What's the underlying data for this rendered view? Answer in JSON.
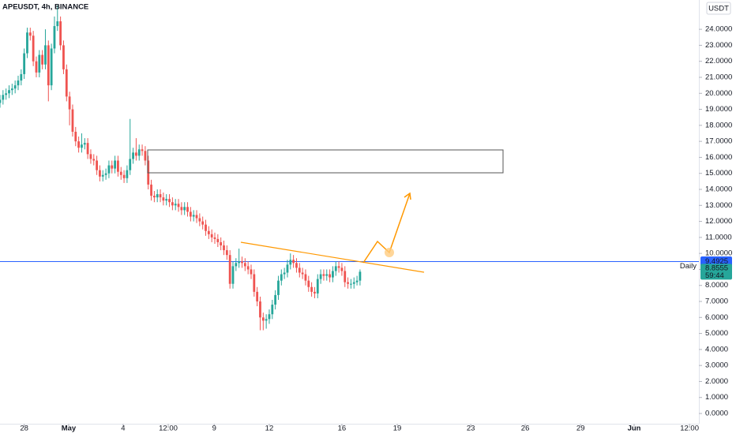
{
  "chart_data": {
    "type": "candlestick",
    "title": "APEUSDT, 4h, BINANCE",
    "currency": "USDT",
    "open": [
      19.4,
      19.6,
      19.9,
      20.0,
      20.2,
      20.3,
      20.5,
      20.8,
      21.2,
      22.5,
      23.8,
      23.6,
      22.0,
      21.3,
      22.4,
      21.8,
      23.0,
      20.5,
      22.8,
      24.2,
      24.5,
      23.0,
      21.5,
      19.8,
      19.0,
      17.6,
      17.0,
      16.6,
      16.8,
      16.9,
      16.2,
      15.9,
      15.8,
      15.2,
      14.8,
      14.9,
      15.0,
      15.5,
      15.3,
      15.8,
      15.1,
      14.9,
      14.7,
      15.2,
      15.9,
      16.3,
      16.1,
      16.5,
      16.4,
      15.8,
      14.3,
      13.6,
      13.5,
      13.7,
      13.5,
      13.3,
      13.4,
      13.2,
      13.0,
      13.1,
      12.9,
      12.7,
      12.9,
      12.6,
      12.3,
      12.4,
      12.2,
      12.0,
      11.8,
      11.4,
      11.2,
      11.0,
      10.9,
      10.7,
      10.5,
      10.2,
      9.9,
      8.1,
      9.2,
      9.4,
      9.5,
      9.4,
      9.2,
      9.0,
      8.7,
      7.6,
      7.0,
      6.0,
      5.8,
      5.9,
      6.2,
      6.8,
      7.4,
      8.3,
      8.7,
      8.8,
      9.3,
      9.6,
      9.4,
      9.1,
      8.8,
      8.7,
      8.3,
      7.9,
      7.6,
      7.5,
      8.4,
      8.7,
      8.6,
      8.7,
      8.5,
      8.9,
      9.2,
      9.1,
      8.9,
      8.2,
      8.1,
      8.1,
      8.2,
      8.3
    ],
    "high": [
      19.9,
      20.2,
      20.3,
      20.5,
      20.6,
      20.8,
      21.1,
      21.5,
      22.8,
      24.1,
      24.1,
      23.9,
      22.3,
      22.7,
      22.7,
      24.0,
      23.3,
      23.1,
      24.8,
      25.5,
      24.8,
      23.3,
      21.8,
      20.1,
      19.3,
      17.9,
      17.3,
      17.5,
      17.2,
      17.2,
      16.5,
      16.2,
      16.1,
      15.5,
      15.2,
      15.3,
      15.8,
      15.8,
      16.1,
      16.1,
      15.4,
      15.2,
      15.5,
      18.4,
      16.6,
      17.2,
      16.8,
      16.8,
      16.7,
      16.1,
      14.6,
      13.9,
      14.0,
      14.0,
      13.8,
      13.7,
      13.7,
      13.5,
      13.4,
      13.4,
      13.2,
      13.2,
      13.2,
      12.9,
      12.7,
      12.7,
      12.5,
      12.3,
      12.1,
      11.7,
      11.5,
      11.3,
      11.2,
      11.0,
      10.8,
      10.5,
      10.2,
      9.5,
      9.7,
      10.3,
      9.8,
      9.7,
      9.5,
      9.3,
      9.0,
      7.9,
      7.3,
      6.3,
      6.2,
      6.5,
      7.1,
      7.7,
      8.6,
      9.0,
      9.1,
      9.6,
      10.0,
      9.9,
      9.7,
      9.4,
      9.1,
      9.0,
      8.6,
      8.2,
      7.9,
      8.7,
      9.0,
      9.0,
      9.0,
      9.0,
      9.2,
      9.5,
      9.5,
      9.4,
      9.2,
      8.5,
      8.4,
      8.5,
      8.6,
      9.0
    ],
    "low": [
      19.1,
      19.3,
      19.6,
      19.7,
      19.9,
      20.0,
      20.2,
      20.5,
      20.9,
      22.2,
      23.3,
      21.7,
      21.0,
      21.0,
      21.5,
      21.5,
      19.5,
      20.2,
      22.5,
      23.9,
      22.7,
      21.2,
      19.5,
      18.0,
      17.3,
      16.7,
      16.3,
      16.3,
      16.5,
      15.9,
      15.6,
      15.5,
      14.9,
      14.5,
      14.5,
      14.6,
      14.7,
      15.0,
      15.0,
      14.8,
      14.6,
      14.4,
      14.4,
      14.9,
      15.6,
      15.8,
      15.8,
      16.1,
      15.5,
      14.0,
      13.3,
      13.2,
      13.2,
      13.2,
      13.0,
      13.0,
      12.9,
      12.7,
      12.7,
      12.6,
      12.4,
      12.4,
      12.3,
      12.0,
      12.0,
      11.9,
      11.7,
      11.5,
      11.1,
      10.9,
      10.7,
      10.6,
      10.4,
      10.2,
      9.9,
      9.6,
      7.8,
      7.8,
      8.9,
      9.1,
      9.1,
      8.9,
      8.7,
      8.4,
      7.3,
      6.7,
      5.2,
      5.2,
      5.3,
      5.6,
      5.9,
      6.5,
      7.1,
      8.0,
      8.4,
      8.5,
      9.0,
      9.1,
      8.8,
      8.5,
      8.4,
      8.0,
      7.6,
      7.3,
      7.2,
      7.2,
      8.1,
      8.3,
      8.3,
      8.2,
      8.2,
      8.6,
      8.8,
      8.6,
      7.9,
      7.8,
      7.8,
      7.8,
      8.0,
      8.0
    ],
    "close": [
      19.6,
      19.9,
      20.0,
      20.2,
      20.3,
      20.5,
      20.8,
      21.2,
      22.5,
      23.8,
      23.6,
      22.0,
      21.3,
      22.4,
      21.8,
      23.0,
      20.5,
      22.8,
      24.2,
      24.5,
      23.0,
      21.5,
      19.8,
      19.0,
      17.6,
      17.0,
      16.6,
      16.8,
      16.9,
      16.2,
      15.9,
      15.8,
      15.2,
      14.8,
      14.9,
      15.0,
      15.5,
      15.3,
      15.8,
      15.1,
      14.9,
      14.7,
      15.2,
      15.9,
      16.3,
      16.1,
      16.5,
      16.4,
      15.8,
      14.3,
      13.6,
      13.5,
      13.7,
      13.5,
      13.3,
      13.4,
      13.2,
      13.0,
      13.1,
      12.9,
      12.7,
      12.9,
      12.6,
      12.3,
      12.4,
      12.2,
      12.0,
      11.8,
      11.4,
      11.2,
      11.0,
      10.9,
      10.7,
      10.5,
      10.2,
      9.9,
      8.1,
      9.2,
      9.4,
      9.5,
      9.4,
      9.2,
      9.0,
      8.7,
      7.6,
      7.0,
      6.0,
      5.8,
      5.9,
      6.2,
      6.8,
      7.4,
      8.3,
      8.7,
      8.8,
      9.3,
      9.6,
      9.4,
      9.1,
      8.8,
      8.7,
      8.3,
      7.9,
      7.6,
      7.5,
      8.4,
      8.7,
      8.6,
      8.7,
      8.5,
      8.9,
      9.2,
      9.1,
      8.9,
      8.2,
      8.1,
      8.1,
      8.2,
      8.3,
      8.8555
    ],
    "up_color": "#26a69a",
    "down_color": "#ef5350",
    "xlim": [
      0,
      231
    ],
    "xticks": [
      {
        "value": 8,
        "label": "28"
      },
      {
        "value": 22.7,
        "label": "May"
      },
      {
        "value": 40.7,
        "label": "4"
      },
      {
        "value": 55.6,
        "label": "12:00"
      },
      {
        "value": 70.8,
        "label": "9"
      },
      {
        "value": 89,
        "label": "12"
      },
      {
        "value": 113,
        "label": "16"
      },
      {
        "value": 131.3,
        "label": "19"
      },
      {
        "value": 155.6,
        "label": "23"
      },
      {
        "value": 173.6,
        "label": "26"
      },
      {
        "value": 191.9,
        "label": "29"
      },
      {
        "value": 209.6,
        "label": "Jun"
      },
      {
        "value": 227.9,
        "label": "12:00"
      }
    ],
    "ylim": [
      -0.64,
      25.83
    ],
    "yticks": [
      {
        "value": 0,
        "label": "0.0000"
      },
      {
        "value": 1,
        "label": "1.0000"
      },
      {
        "value": 2,
        "label": "2.0000"
      },
      {
        "value": 3,
        "label": "3.0000"
      },
      {
        "value": 4,
        "label": "4.0000"
      },
      {
        "value": 5,
        "label": "5.0000"
      },
      {
        "value": 6,
        "label": "6.0000"
      },
      {
        "value": 7,
        "label": "7.0000"
      },
      {
        "value": 8,
        "label": "8.0000"
      },
      {
        "value": 9,
        "label": "9.0000"
      },
      {
        "value": 10,
        "label": "10.0000"
      },
      {
        "value": 11,
        "label": "11.0000"
      },
      {
        "value": 12,
        "label": "12.0000"
      },
      {
        "value": 13,
        "label": "13.0000"
      },
      {
        "value": 14,
        "label": "14.0000"
      },
      {
        "value": 15,
        "label": "15.0000"
      },
      {
        "value": 16,
        "label": "16.0000"
      },
      {
        "value": 17,
        "label": "17.0000"
      },
      {
        "value": 18,
        "label": "18.0000"
      },
      {
        "value": 19,
        "label": "19.0000"
      },
      {
        "value": 20,
        "label": "20.0000"
      },
      {
        "value": 21,
        "label": "21.0000"
      },
      {
        "value": 22,
        "label": "22.0000"
      },
      {
        "value": 23,
        "label": "23.0000"
      },
      {
        "value": 24,
        "label": "24.0000"
      }
    ],
    "daily_level": 9.4925,
    "daily_label": "Daily",
    "daily_color": "#2962ff",
    "countdown": "59:44"
  }
}
